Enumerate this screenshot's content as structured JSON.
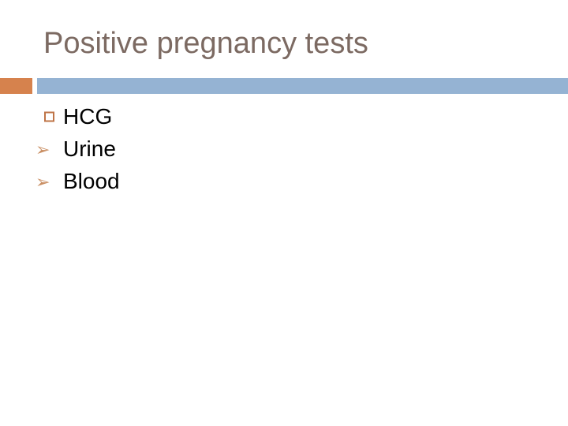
{
  "slide": {
    "title": "Positive pregnancy tests",
    "bullets": [
      {
        "label": "HCG",
        "bullet_style": "square-outline"
      },
      {
        "label": "Urine",
        "bullet_style": "arrowhead"
      },
      {
        "label": "Blood",
        "bullet_style": "arrowhead"
      }
    ],
    "glyphs": {
      "arrowhead": "➢"
    },
    "colors": {
      "background": "#FFFFFF",
      "title_text": "#7C6A62",
      "band_orange": "#D6824D",
      "band_blue": "#95B3D3",
      "bullet_square_outline": "#BF7447",
      "bullet_arrow": "#C98E62",
      "body_text": "#000000"
    }
  }
}
